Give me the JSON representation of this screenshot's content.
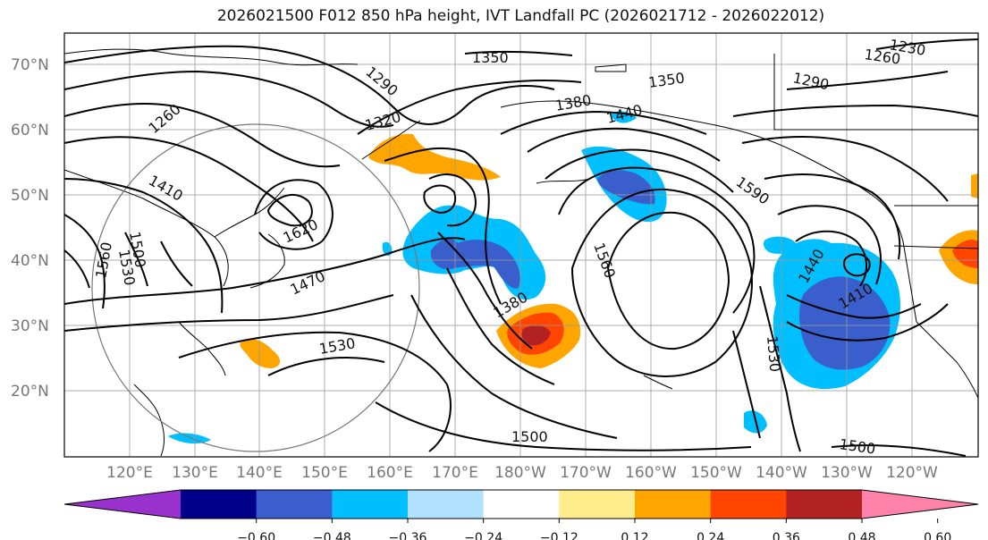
{
  "title": "2026021500 F012 850 hPa height, IVT Landfall PC (2026021712 - 2026022012)",
  "map": {
    "lat_labels": [
      "70°N",
      "60°N",
      "50°N",
      "40°N",
      "30°N",
      "20°N"
    ],
    "lon_labels": [
      "120°E",
      "130°E",
      "140°E",
      "150°E",
      "160°E",
      "170°E",
      "180°W",
      "170°W",
      "160°W",
      "150°W",
      "140°W",
      "130°W",
      "120°W"
    ],
    "contour_labels": [
      "1350",
      "1290",
      "1320",
      "1260",
      "1410",
      "1560",
      "1500",
      "1530",
      "1620",
      "1470",
      "1380",
      "1530",
      "1560",
      "1590",
      "1440",
      "1350",
      "1290",
      "1260",
      "1230",
      "1440",
      "1410",
      "1530",
      "1500",
      "1500",
      "1380"
    ]
  },
  "colorbar": {
    "ticks": [
      "−0.60",
      "−0.48",
      "−0.36",
      "−0.24",
      "−0.12",
      "0.12",
      "0.24",
      "0.36",
      "0.48",
      "0.60"
    ],
    "colors": [
      "#9932CC",
      "#00008B",
      "#3A5FCD",
      "#00BFFF",
      "#B0E2FF",
      "#FFFFFF",
      "#FFEC8B",
      "#FFA500",
      "#FF4500",
      "#B22222",
      "#FF82AB"
    ]
  }
}
